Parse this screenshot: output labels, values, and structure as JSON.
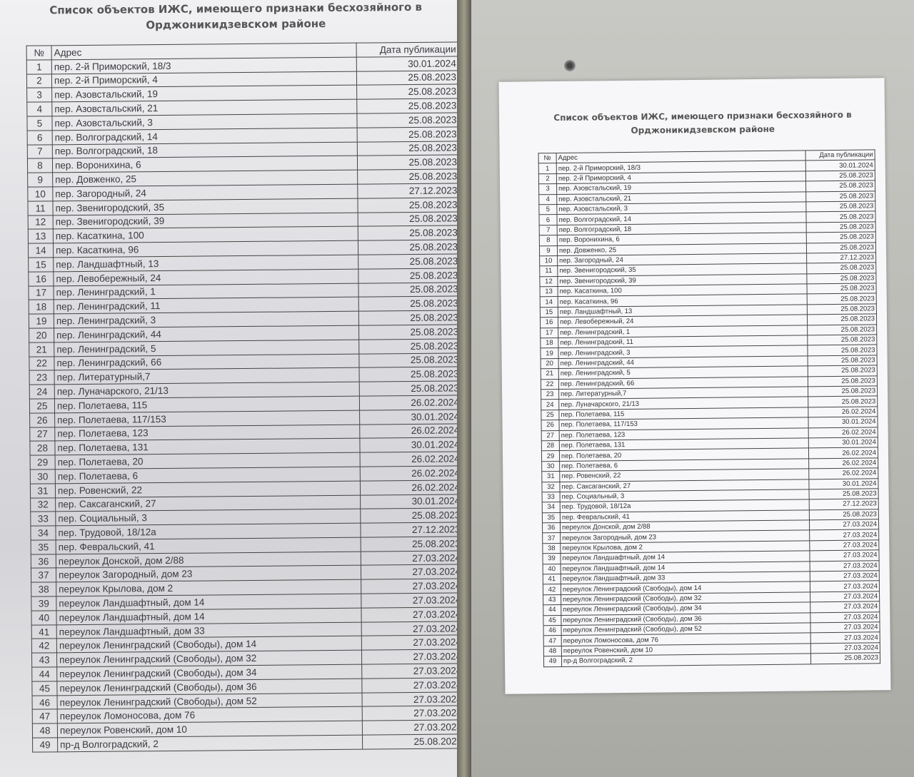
{
  "document": {
    "title": "Список объектов ИЖС, имеющего признаки бесхозяйного в Орджоникидзевском районе",
    "columns": [
      "№",
      "Адрес",
      "Дата публикации"
    ],
    "rows": [
      [
        "1",
        "пер. 2-й Приморский, 18/3",
        "30.01.2024"
      ],
      [
        "2",
        "пер. 2-й Приморский, 4",
        "25.08.2023"
      ],
      [
        "3",
        "пер. Азовстальский, 19",
        "25.08.2023"
      ],
      [
        "4",
        "пер. Азовстальский, 21",
        "25.08.2023"
      ],
      [
        "5",
        "пер. Азовстальский, 3",
        "25.08.2023"
      ],
      [
        "6",
        "пер. Волгоградский, 14",
        "25.08.2023"
      ],
      [
        "7",
        "пер. Волгоградский, 18",
        "25.08.2023"
      ],
      [
        "8",
        "пер. Воронихина, 6",
        "25.08.2023"
      ],
      [
        "9",
        "пер. Довженко, 25",
        "25.08.2023"
      ],
      [
        "10",
        "пер. Загородный, 24",
        "27.12.2023"
      ],
      [
        "11",
        "пер. Звенигородский, 35",
        "25.08.2023"
      ],
      [
        "12",
        "пер. Звенигородский, 39",
        "25.08.2023"
      ],
      [
        "13",
        "пер. Касаткина, 100",
        "25.08.2023"
      ],
      [
        "14",
        "пер. Касаткина, 96",
        "25.08.2023"
      ],
      [
        "15",
        "пер. Ландшафтный, 13",
        "25.08.2023"
      ],
      [
        "16",
        "пер. Левобережный, 24",
        "25.08.2023"
      ],
      [
        "17",
        "пер. Ленинградский, 1",
        "25.08.2023"
      ],
      [
        "18",
        "пер. Ленинградский, 11",
        "25.08.2023"
      ],
      [
        "19",
        "пер. Ленинградский, 3",
        "25.08.2023"
      ],
      [
        "20",
        "пер. Ленинградский, 44",
        "25.08.2023"
      ],
      [
        "21",
        "пер. Ленинградский, 5",
        "25.08.2023"
      ],
      [
        "22",
        "пер. Ленинградский, 66",
        "25.08.2023"
      ],
      [
        "23",
        "пер. Литературный,7",
        "25.08.2023"
      ],
      [
        "24",
        "пер. Луначарского, 21/13",
        "25.08.2023"
      ],
      [
        "25",
        "пер. Полетаева, 115",
        "26.02.2024"
      ],
      [
        "26",
        "пер. Полетаева, 117/153",
        "30.01.2024"
      ],
      [
        "27",
        "пер. Полетаева, 123",
        "26.02.2024"
      ],
      [
        "28",
        "пер. Полетаева, 131",
        "30.01.2024"
      ],
      [
        "29",
        "пер. Полетаева, 20",
        "26.02.2024"
      ],
      [
        "30",
        "пер. Полетаева, 6",
        "26.02.2024"
      ],
      [
        "31",
        "пер. Ровенский, 22",
        "26.02.2024"
      ],
      [
        "32",
        "пер. Саксаганский, 27",
        "30.01.2024"
      ],
      [
        "33",
        "пер. Социальный, 3",
        "25.08.2023"
      ],
      [
        "34",
        "пер. Трудовой, 18/12а",
        "27.12.2023"
      ],
      [
        "35",
        "пер. Февральский, 41",
        "25.08.2023"
      ],
      [
        "36",
        "переулок Донской, дом 2/88",
        "27.03.2024"
      ],
      [
        "37",
        "переулок Загородный, дом 23",
        "27.03.2024"
      ],
      [
        "38",
        "переулок Крылова, дом 2",
        "27.03.2024"
      ],
      [
        "39",
        "переулок Ландшафтный, дом 14",
        "27.03.2024"
      ],
      [
        "40",
        "переулок Ландшафтный, дом 14",
        "27.03.2024"
      ],
      [
        "41",
        "переулок Ландшафтный, дом 33",
        "27.03.2024"
      ],
      [
        "42",
        "переулок Ленинградский (Свободы), дом 14",
        "27.03.2024"
      ],
      [
        "43",
        "переулок Ленинградский (Свободы), дом 32",
        "27.03.2024"
      ],
      [
        "44",
        "переулок Ленинградский (Свободы), дом 34",
        "27.03.2024"
      ],
      [
        "45",
        "переулок Ленинградский (Свободы), дом 36",
        "27.03.2024"
      ],
      [
        "46",
        "переулок Ленинградский (Свободы), дом 52",
        "27.03.2024"
      ],
      [
        "47",
        "переулок Ломоносова, дом 76",
        "27.03.2024"
      ],
      [
        "48",
        "переулок Ровенский, дом 10",
        "27.03.2024"
      ],
      [
        "49",
        "пр-д Волгоградский, 2",
        "25.08.2023"
      ]
    ]
  }
}
